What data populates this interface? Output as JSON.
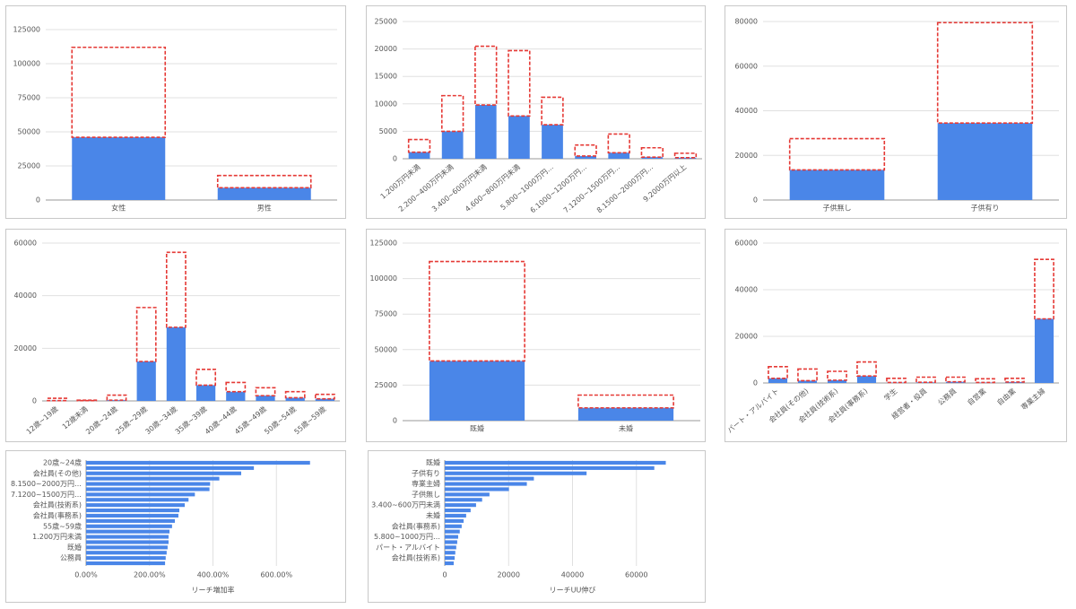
{
  "chart_data": [
    {
      "type": "bar",
      "stacked": true,
      "grid": true,
      "categories": [
        "女性",
        "男性"
      ],
      "series": [
        {
          "color": "#4a86e8",
          "values": [
            46000,
            9000
          ]
        },
        {
          "color": "#e53935",
          "style": "dashed",
          "values": [
            66000,
            9000
          ]
        }
      ],
      "ylim": [
        0,
        125000
      ],
      "yticks": [
        0,
        25000,
        50000,
        75000,
        100000,
        125000
      ]
    },
    {
      "type": "bar",
      "stacked": true,
      "grid": true,
      "categories": [
        "1.200万円未満",
        "2.200~400万円未満",
        "3.400~600万円未満",
        "4.600~800万円未満",
        "5.800~1000万円…",
        "6.1000~1200万円…",
        "7.1200~1500万円…",
        "8.1500~2000万円…",
        "9.2000万円以上"
      ],
      "series": [
        {
          "color": "#4a86e8",
          "values": [
            1200,
            5000,
            9800,
            7800,
            6200,
            500,
            1100,
            300,
            200
          ]
        },
        {
          "color": "#e53935",
          "style": "dashed",
          "values": [
            2300,
            6500,
            10700,
            11900,
            5000,
            2000,
            3400,
            1700,
            800
          ]
        }
      ],
      "ylim": [
        0,
        25000
      ],
      "yticks": [
        0,
        5000,
        10000,
        15000,
        20000,
        25000
      ]
    },
    {
      "type": "bar",
      "stacked": true,
      "grid": true,
      "categories": [
        "子供無し",
        "子供有り"
      ],
      "series": [
        {
          "color": "#4a86e8",
          "values": [
            13500,
            34500
          ]
        },
        {
          "color": "#e53935",
          "style": "dashed",
          "values": [
            14000,
            45000
          ]
        }
      ],
      "ylim": [
        0,
        80000
      ],
      "yticks": [
        0,
        20000,
        40000,
        60000,
        80000
      ]
    },
    {
      "type": "bar",
      "stacked": true,
      "grid": true,
      "categories": [
        "12歳~19歳",
        "12歳未満",
        "20歳~24歳",
        "25歳~29歳",
        "30歳~34歳",
        "35歳~39歳",
        "40歳~44歳",
        "45歳~49歳",
        "50歳~54歳",
        "55歳~59歳"
      ],
      "series": [
        {
          "color": "#4a86e8",
          "values": [
            100,
            100,
            300,
            15000,
            28000,
            6000,
            3500,
            2000,
            1200,
            800
          ]
        },
        {
          "color": "#e53935",
          "style": "dashed",
          "values": [
            900,
            200,
            1900,
            20500,
            28500,
            6000,
            3500,
            3000,
            2300,
            1700
          ]
        }
      ],
      "ylim": [
        0,
        60000
      ],
      "yticks": [
        0,
        20000,
        40000,
        60000
      ]
    },
    {
      "type": "bar",
      "stacked": true,
      "grid": true,
      "categories": [
        "既婚",
        "未婚"
      ],
      "series": [
        {
          "color": "#4a86e8",
          "values": [
            42000,
            9000
          ]
        },
        {
          "color": "#e53935",
          "style": "dashed",
          "values": [
            70000,
            9000
          ]
        }
      ],
      "ylim": [
        0,
        125000
      ],
      "yticks": [
        0,
        25000,
        50000,
        75000,
        100000,
        125000
      ]
    },
    {
      "type": "bar",
      "stacked": true,
      "grid": true,
      "categories": [
        "パート・アルバイト",
        "会社員(その他)",
        "会社員(技術系)",
        "会社員(事務系)",
        "学生",
        "経営者・役員",
        "公務員",
        "自営業",
        "自由業",
        "専業主婦"
      ],
      "series": [
        {
          "color": "#4a86e8",
          "values": [
            2000,
            1000,
            1200,
            3000,
            200,
            300,
            500,
            200,
            400,
            27500
          ]
        },
        {
          "color": "#e53935",
          "style": "dashed",
          "values": [
            5000,
            5000,
            3800,
            6000,
            1800,
            2200,
            2000,
            1600,
            1600,
            25500
          ]
        }
      ],
      "ylim": [
        0,
        60000
      ],
      "yticks": [
        0,
        20000,
        40000,
        60000
      ]
    },
    {
      "type": "barh",
      "grid": true,
      "color": "#4a86e8",
      "xlabel": "リーチ増加率",
      "categories": [
        "20歳~24歳",
        null,
        "会社員(その他)",
        null,
        "8.1500~2000万円…",
        null,
        "7.1200~1500万円…",
        null,
        "会社員(技術系)",
        null,
        "会社員(事務系)",
        null,
        "55歳~59歳",
        null,
        "1.200万円未満",
        null,
        "既婚",
        null,
        "公務員",
        null
      ],
      "values": [
        706,
        529,
        489,
        420,
        391,
        389,
        343,
        323,
        311,
        294,
        291,
        280,
        271,
        263,
        260,
        260,
        257,
        254,
        251,
        249
      ],
      "xlim": [
        0,
        800
      ],
      "xticks": [
        {
          "value": 0,
          "label": "0.00%"
        },
        {
          "value": 200,
          "label": "200.00%"
        },
        {
          "value": 400,
          "label": "400.00%"
        },
        {
          "value": 600,
          "label": "600.00%"
        }
      ]
    },
    {
      "type": "barh",
      "grid": true,
      "color": "#4a86e8",
      "xlabel": "リーチUU伸び",
      "categories": [
        "既婚",
        null,
        "子供有り",
        null,
        "専業主婦",
        null,
        "子供無し",
        null,
        "3.400~600万円未満",
        null,
        "未婚",
        null,
        "会社員(事務系)",
        null,
        "5.800~1000万円…",
        null,
        "パート・アルバイト",
        null,
        "会社員(技術系)",
        null
      ],
      "values": [
        69200,
        65600,
        44400,
        27900,
        25700,
        20100,
        14000,
        11700,
        9800,
        8100,
        6700,
        5900,
        5300,
        4700,
        4200,
        3900,
        3600,
        3300,
        3100,
        2800
      ],
      "xlim": [
        0,
        80000
      ],
      "xticks": [
        0,
        20000,
        40000,
        60000
      ]
    }
  ]
}
